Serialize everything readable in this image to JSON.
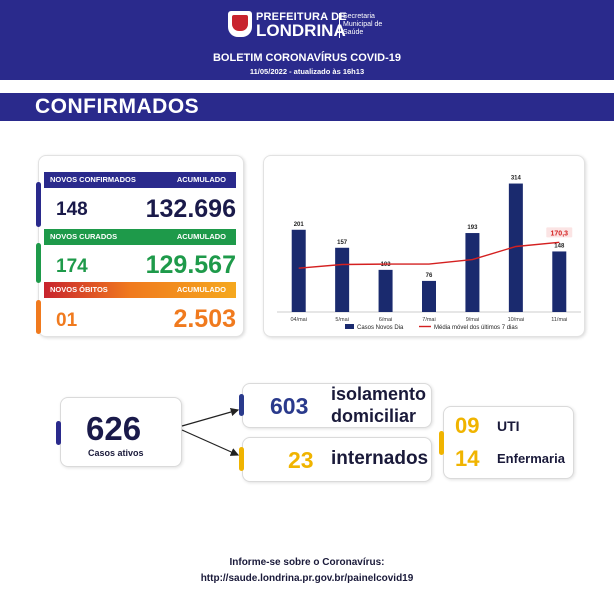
{
  "header": {
    "prefeitura": "PREFEITURA DE",
    "city": "LONDRINA",
    "secretaria": "Secretaria Municipal de Saúde",
    "title": "BOLETIM CORONAVÍRUS COVID-19",
    "subtitle": "11/05/2022 - atualizado às 16h13"
  },
  "section": {
    "title": "CONFIRMADOS"
  },
  "stats": {
    "confirmed": {
      "label": "NOVOS CONFIRMADOS",
      "acc_label": "ACUMULADO",
      "new": "148",
      "total": "132.696",
      "color": "#2a2a8c"
    },
    "recovered": {
      "label": "NOVOS CURADOS",
      "acc_label": "ACUMULADO",
      "new": "174",
      "total": "129.567",
      "color": "#1e9a4a"
    },
    "deaths": {
      "label": "NOVOS ÓBITOS",
      "acc_label": "ACUMULADO",
      "new": "01",
      "total": "2.503",
      "color": "#f07a1e"
    }
  },
  "chart_data": {
    "type": "bar",
    "categories": [
      "04/mai",
      "5/mai",
      "6/mai",
      "7/mai",
      "9/mai",
      "10/mai",
      "11/mai"
    ],
    "series": [
      {
        "name": "Casos Novos Dia",
        "type": "bar",
        "values": [
          201,
          157,
          103,
          76,
          193,
          314,
          148
        ],
        "color": "#1a2a6e"
      },
      {
        "name": "Média móvel dos últimos 7 dias",
        "type": "line",
        "values": [
          107,
          116,
          117,
          117,
          128,
          160,
          170.3
        ],
        "color": "#d42020"
      }
    ],
    "highlight_label": "170,3",
    "ylim": [
      0,
      330
    ],
    "grid": false,
    "legend": "bottom"
  },
  "active": {
    "value": "626",
    "label": "Casos ativos"
  },
  "isolation": {
    "value": "603",
    "label_line1": "isolamento",
    "label_line2": "domiciliar"
  },
  "hospitalized": {
    "value": "23",
    "label": "internados"
  },
  "uti": {
    "value": "09",
    "label": "UTI"
  },
  "ward": {
    "value": "14",
    "label": "Enfermaria"
  },
  "footer": {
    "line1": "Informe-se sobre o Coronavírus:",
    "line2": "http://saude.londrina.pr.gov.br/painelcovid19"
  }
}
